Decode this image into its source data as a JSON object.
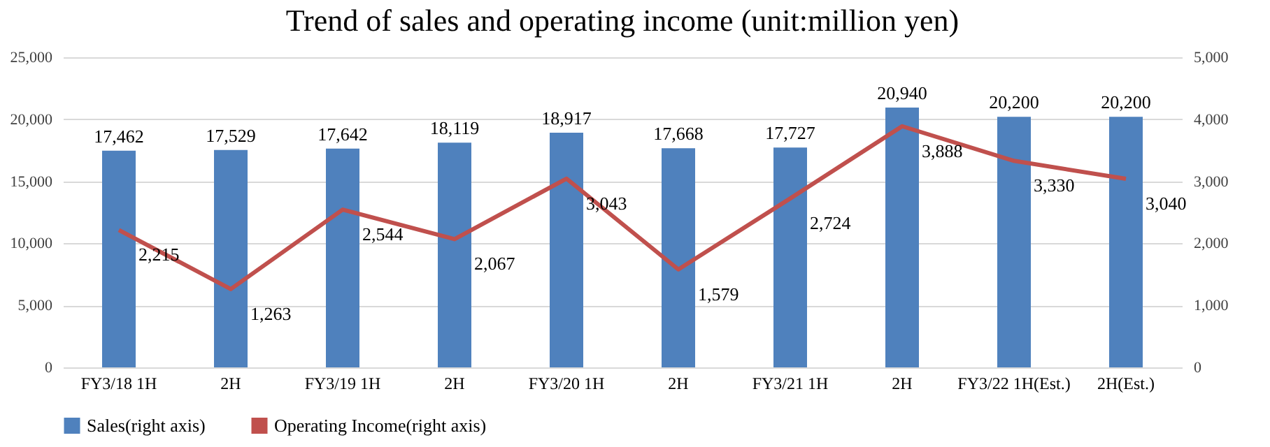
{
  "chart_data": {
    "type": "bar",
    "title": "Trend of sales and operating income (unit:million yen)",
    "categories": [
      "FY3/18 1H",
      "2H",
      "FY3/19 1H",
      "2H",
      "FY3/20 1H",
      "2H",
      "FY3/21 1H",
      "2H",
      "FY3/22 1H(Est.)",
      "2H(Est.)"
    ],
    "series": [
      {
        "name": "Sales(right axis)",
        "color": "#4f81bd",
        "values": [
          17462,
          17529,
          17642,
          18119,
          18917,
          17668,
          17727,
          20940,
          20200,
          20200
        ],
        "value_labels": [
          "17,462",
          "17,529",
          "17,642",
          "18,119",
          "18,917",
          "17,668",
          "17,727",
          "20,940",
          "20,200",
          "20,200"
        ]
      },
      {
        "name": "Operating Income(right axis)",
        "type": "line",
        "axis": "y2",
        "color": "#c0504d",
        "values": [
          2215,
          1263,
          2544,
          2067,
          3043,
          1579,
          2724,
          3888,
          3330,
          3040
        ],
        "value_labels": [
          "2,215",
          "1,263",
          "2,544",
          "2,067",
          "3,043",
          "1,579",
          "2,724",
          "3,888",
          "3,330",
          "3,040"
        ]
      }
    ],
    "ylim": [
      0,
      25000
    ],
    "yticks": [
      0,
      {
        "value": 5000,
        "label": "5,000"
      },
      {
        "value": 10000,
        "label": "10,000"
      },
      {
        "value": 15000,
        "label": "15,000"
      },
      {
        "value": 20000,
        "label": "20,000"
      },
      {
        "value": 25000,
        "label": "25,000"
      }
    ],
    "y2lim": [
      0,
      5000
    ],
    "y2ticks": [
      0,
      {
        "value": 1000,
        "label": "1,000"
      },
      {
        "value": 2000,
        "label": "2,000"
      },
      {
        "value": 3000,
        "label": "3,000"
      },
      {
        "value": 4000,
        "label": "4,000"
      },
      {
        "value": 5000,
        "label": "5,000"
      }
    ],
    "grid": "y",
    "legend": "bottom",
    "marker": "none",
    "line_style": "solid"
  }
}
